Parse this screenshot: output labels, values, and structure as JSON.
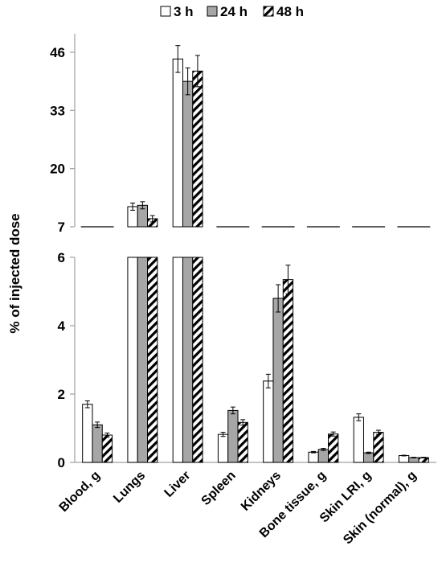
{
  "chart_data": {
    "type": "bar",
    "ylabel": "% of injected dose",
    "y_break": true,
    "upper_panel": {
      "ylim": [
        7,
        50
      ],
      "ticks": [
        "7",
        "20",
        "33",
        "46"
      ]
    },
    "lower_panel": {
      "ylim": [
        0,
        6
      ],
      "ticks": [
        "0",
        "2",
        "4",
        "6"
      ]
    },
    "categories": [
      "Blood, g",
      "Lungs",
      "Liver",
      "Spleen",
      "Kidneys",
      "Bone tissue, g",
      "Skin LRI, g",
      "Skin (normal), g"
    ],
    "series": [
      {
        "name": "3 h",
        "fill": "white",
        "values": [
          1.7,
          11.5,
          44.5,
          0.82,
          2.38,
          0.3,
          1.32,
          0.2
        ],
        "errors": [
          0.1,
          0.8,
          3.0,
          0.06,
          0.2,
          0.02,
          0.1,
          0.01
        ]
      },
      {
        "name": "24 h",
        "fill": "gray",
        "values": [
          1.1,
          11.8,
          39.5,
          1.52,
          4.8,
          0.38,
          0.28,
          0.14
        ],
        "errors": [
          0.08,
          0.8,
          3.0,
          0.1,
          0.4,
          0.03,
          0.02,
          0.01
        ]
      },
      {
        "name": "48 h",
        "fill": "hatched",
        "values": [
          0.8,
          8.8,
          41.8,
          1.17,
          5.35,
          0.83,
          0.88,
          0.14
        ],
        "errors": [
          0.06,
          0.7,
          3.5,
          0.08,
          0.42,
          0.06,
          0.06,
          0.01
        ]
      }
    ],
    "legend_position": "top",
    "grid": false,
    "colors": {
      "gray": "#a6a6a6",
      "axis": "#a0a0a0",
      "outline": "#000000"
    }
  }
}
